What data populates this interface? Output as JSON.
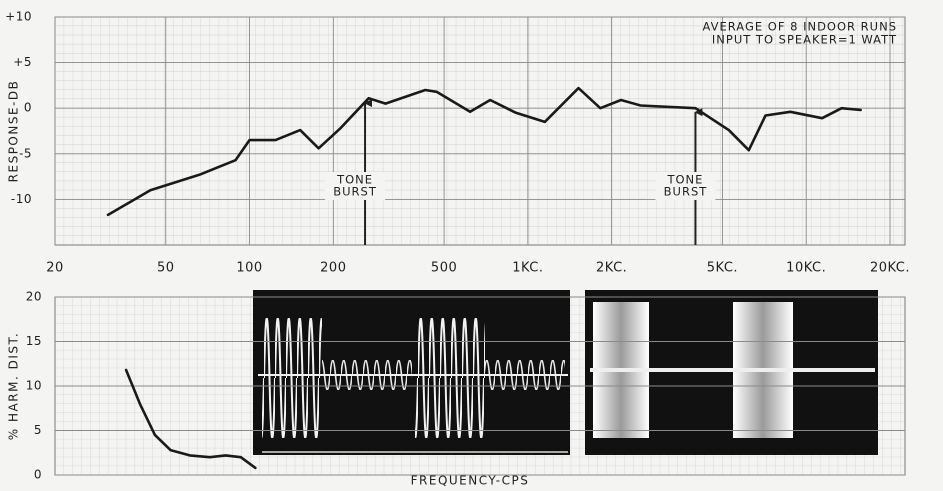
{
  "chart_data": [
    {
      "type": "line",
      "y_label": "RESPONSE-DB",
      "notes": [
        "AVERAGE OF 8 INDOOR RUNS",
        "INPUT TO SPEAKER=1 WATT"
      ],
      "log_x": true,
      "grid": true,
      "xlim": [
        20,
        20000
      ],
      "xticks": [
        20,
        50,
        100,
        200,
        500,
        {
          "value": 1000,
          "label": "1KC."
        },
        {
          "value": 2000,
          "label": "2KC."
        },
        {
          "value": 5000,
          "label": "5KC."
        },
        {
          "value": 10000,
          "label": "10KC."
        },
        {
          "value": 20000,
          "label": "20KC."
        }
      ],
      "ylim": [
        -15,
        10
      ],
      "yticks": [
        {
          "value": 10,
          "label": "+10"
        },
        {
          "value": 5,
          "label": "+5"
        },
        0,
        -5,
        -10
      ],
      "annotations": [
        {
          "text": [
            "TONE",
            "BURST"
          ],
          "x": 260,
          "y": 1
        },
        {
          "text": [
            "TONE",
            "BURST"
          ],
          "x": 4000,
          "y": 0
        }
      ],
      "series": [
        {
          "color": "#1a1a1a",
          "x": [
            31,
            44,
            66,
            89,
            100,
            124,
            152,
            177,
            212,
            268,
            308,
            428,
            470,
            620,
            732,
            906,
            1150,
            1520,
            1820,
            2160,
            2540,
            4000,
            5270,
            6220,
            7140,
            8770,
            11400,
            13400,
            15700
          ],
          "values": [
            -11.7,
            -9.0,
            -7.3,
            -5.7,
            -3.5,
            -3.5,
            -2.4,
            -4.4,
            -2.2,
            1.1,
            0.5,
            2.0,
            1.8,
            -0.4,
            0.9,
            -0.5,
            -1.5,
            2.2,
            0,
            0.9,
            0.3,
            0,
            -2.4,
            -4.6,
            -0.8,
            -0.4,
            -1.1,
            0,
            -0.2
          ]
        }
      ]
    },
    {
      "type": "line",
      "y_label": "% HARM. DIST.",
      "x_label": "FREQUENCY-CPS",
      "log_x": true,
      "grid": true,
      "xlim": [
        20,
        20000
      ],
      "ylim": [
        0,
        20
      ],
      "yticks": [
        0,
        5,
        10,
        15,
        20
      ],
      "series": [
        {
          "color": "#1a1a1a",
          "x": [
            36,
            40.5,
            45.7,
            52,
            61,
            72,
            82,
            93,
            105
          ],
          "values": [
            11.8,
            7.9,
            4.5,
            2.8,
            2.2,
            2.0,
            2.2,
            2.0,
            0.8
          ]
        }
      ]
    }
  ]
}
